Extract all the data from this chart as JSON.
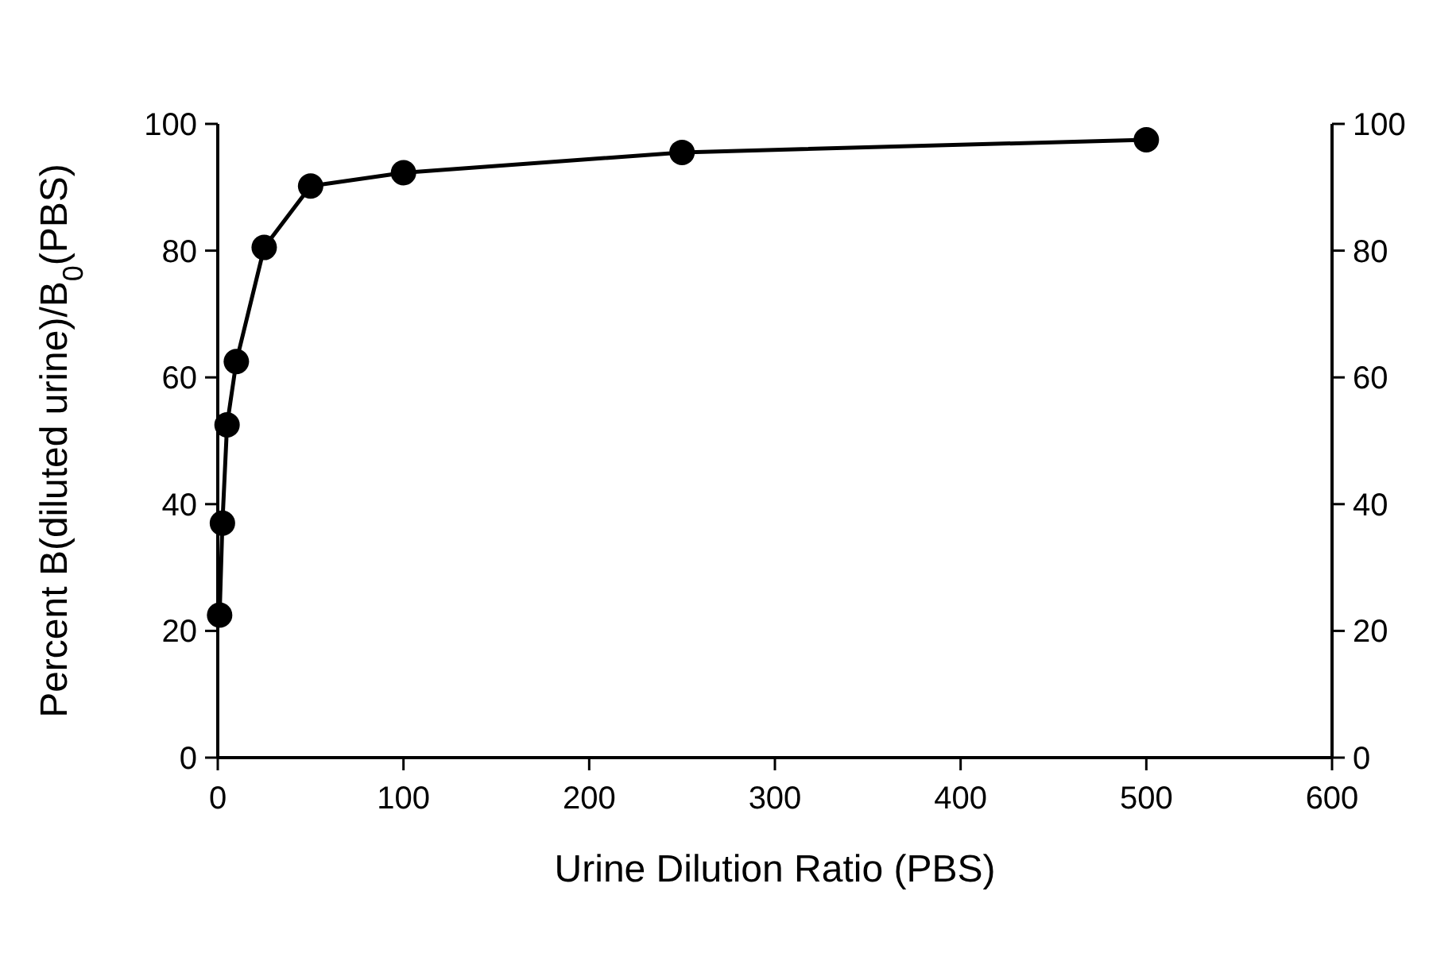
{
  "chart_data": {
    "type": "line",
    "xlabel": "Urine Dilution Ratio (PBS)",
    "ylabel": "Percent B(diluted urine)/B$_{0}$(PBS)",
    "x": [
      1,
      2.5,
      5,
      10,
      25,
      50,
      100,
      250,
      500
    ],
    "series": [
      {
        "color": "#000000",
        "values": [
          22.5,
          37,
          52.5,
          62.5,
          80.5,
          90.2,
          92.3,
          95.5,
          97.5
        ]
      }
    ],
    "xlim": [
      0,
      600
    ],
    "xticks": [
      0,
      100,
      200,
      300,
      400,
      500,
      600
    ],
    "ylim": [
      0,
      100
    ],
    "yticks": [
      0,
      20,
      40,
      60,
      80,
      100
    ],
    "y2lim": [
      0,
      100
    ],
    "y2ticks": [
      0,
      20,
      40,
      60,
      80,
      100
    ],
    "marker": "circle",
    "line_style": "solid"
  }
}
